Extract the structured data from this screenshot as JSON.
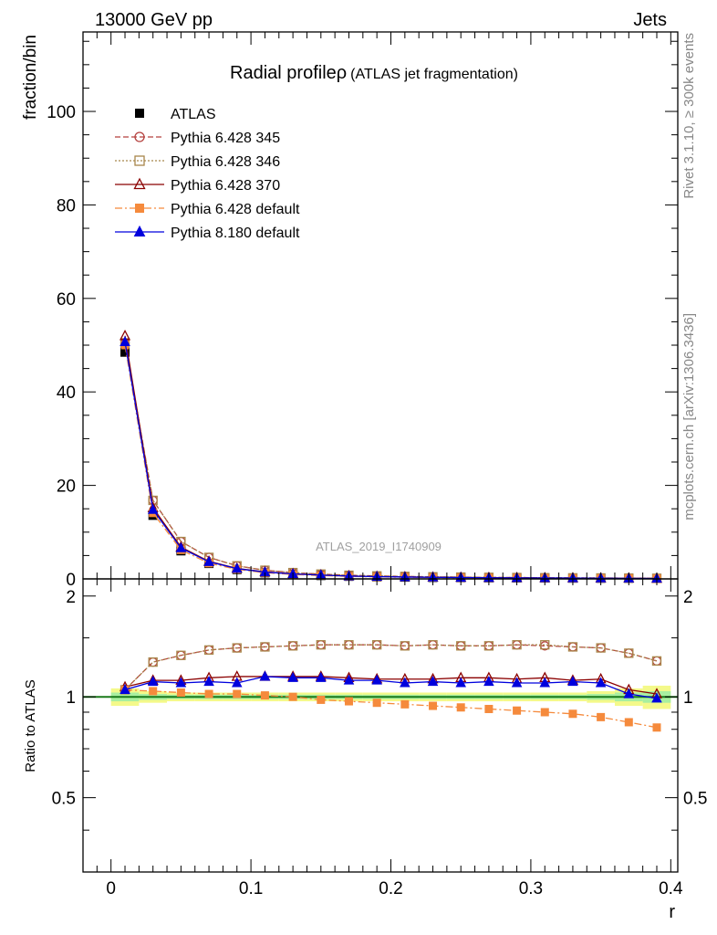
{
  "header": {
    "left": "13000 GeV pp",
    "right": "Jets"
  },
  "side_labels": {
    "top": "Rivet 3.1.10, ≥ 300k events",
    "bottom": "mcplots.cern.ch [arXiv:1306.3436]"
  },
  "colors": {
    "atlas": "#000000",
    "p345": "#b5413e",
    "p346": "#a8864a",
    "p370": "#8b0000",
    "p6def": "#f58a3c",
    "p8def": "#0000dd",
    "band_outer": "#f4f98a",
    "band_inner": "#a8efa0",
    "ratio_line": "#1a7a1a"
  },
  "chart_data": [
    {
      "type": "line",
      "title": "Radial profile",
      "title_symbol": "ρ",
      "subtitle": "(ATLAS jet fragmentation)",
      "ylabel": "fraction/bin",
      "watermark": "ATLAS_2019_I1740909",
      "xlim": [
        -0.02,
        0.405
      ],
      "ylim": [
        0,
        117
      ],
      "yticks": [
        0,
        20,
        40,
        60,
        80,
        100
      ],
      "x": [
        0.01,
        0.03,
        0.05,
        0.07,
        0.09,
        0.11,
        0.13,
        0.15,
        0.17,
        0.19,
        0.21,
        0.23,
        0.25,
        0.27,
        0.29,
        0.31,
        0.33,
        0.35,
        0.37,
        0.39
      ],
      "legend": {
        "placement": "top-left"
      },
      "series": [
        {
          "name": "ATLAS",
          "key": "atlas",
          "marker": "square",
          "line": "none",
          "values": [
            48.5,
            13.6,
            6.0,
            3.3,
            2.0,
            1.3,
            0.95,
            0.72,
            0.55,
            0.45,
            0.37,
            0.31,
            0.27,
            0.23,
            0.2,
            0.18,
            0.16,
            0.14,
            0.12,
            0.1
          ]
        },
        {
          "name": "Pythia 6.428 345",
          "key": "p345",
          "marker": "open-circle",
          "line": "dashed",
          "values": [
            50.5,
            16.8,
            8.0,
            4.6,
            2.8,
            1.85,
            1.35,
            1.02,
            0.78,
            0.64,
            0.53,
            0.44,
            0.38,
            0.33,
            0.29,
            0.25,
            0.22,
            0.2,
            0.16,
            0.13
          ]
        },
        {
          "name": "Pythia 6.428 346",
          "key": "p346",
          "marker": "open-square",
          "line": "dotted",
          "values": [
            50.5,
            16.8,
            8.0,
            4.6,
            2.8,
            1.85,
            1.35,
            1.03,
            0.78,
            0.64,
            0.53,
            0.44,
            0.38,
            0.33,
            0.29,
            0.25,
            0.22,
            0.2,
            0.16,
            0.13
          ]
        },
        {
          "name": "Pythia 6.428 370",
          "key": "p370",
          "marker": "open-triangle",
          "line": "solid",
          "values": [
            52.0,
            15.2,
            6.8,
            3.75,
            2.25,
            1.5,
            1.08,
            0.82,
            0.62,
            0.5,
            0.42,
            0.35,
            0.3,
            0.26,
            0.23,
            0.2,
            0.18,
            0.16,
            0.13,
            0.1
          ]
        },
        {
          "name": "Pythia 6.428 default",
          "key": "p6def",
          "marker": "filled-square",
          "line": "dashdot",
          "values": [
            50.0,
            14.1,
            6.2,
            3.35,
            2.05,
            1.32,
            0.95,
            0.71,
            0.53,
            0.43,
            0.35,
            0.29,
            0.25,
            0.21,
            0.18,
            0.16,
            0.14,
            0.12,
            0.1,
            0.08
          ]
        },
        {
          "name": "Pythia 8.180 default",
          "key": "p8def",
          "marker": "filled-triangle",
          "line": "solid",
          "values": [
            50.7,
            14.8,
            6.6,
            3.65,
            2.2,
            1.45,
            1.07,
            0.81,
            0.6,
            0.49,
            0.4,
            0.34,
            0.29,
            0.25,
            0.22,
            0.2,
            0.18,
            0.15,
            0.12,
            0.1
          ]
        }
      ]
    },
    {
      "type": "line",
      "title": "",
      "ylabel": "Ratio to ATLAS",
      "xlabel": "r",
      "xlim": [
        -0.02,
        0.405
      ],
      "ylim": [
        0.3,
        2.25
      ],
      "yticks": [
        0.5,
        1,
        2
      ],
      "xticks": [
        0,
        0.1,
        0.2,
        0.3,
        0.4
      ],
      "x": [
        0.01,
        0.03,
        0.05,
        0.07,
        0.09,
        0.11,
        0.13,
        0.15,
        0.17,
        0.19,
        0.21,
        0.23,
        0.25,
        0.27,
        0.29,
        0.31,
        0.33,
        0.35,
        0.37,
        0.39
      ],
      "band_outer": [
        0.06,
        0.04,
        0.03,
        0.03,
        0.03,
        0.03,
        0.03,
        0.03,
        0.03,
        0.03,
        0.03,
        0.03,
        0.03,
        0.03,
        0.03,
        0.03,
        0.03,
        0.04,
        0.06,
        0.08
      ],
      "band_inner": [
        0.03,
        0.02,
        0.015,
        0.015,
        0.015,
        0.015,
        0.015,
        0.015,
        0.015,
        0.015,
        0.015,
        0.015,
        0.015,
        0.015,
        0.015,
        0.015,
        0.015,
        0.02,
        0.03,
        0.04
      ],
      "series": [
        {
          "key": "p345",
          "values": [
            1.05,
            1.27,
            1.33,
            1.38,
            1.4,
            1.41,
            1.42,
            1.43,
            1.43,
            1.43,
            1.42,
            1.43,
            1.42,
            1.42,
            1.43,
            1.42,
            1.41,
            1.4,
            1.35,
            1.28
          ]
        },
        {
          "key": "p346",
          "values": [
            1.05,
            1.27,
            1.33,
            1.38,
            1.4,
            1.41,
            1.42,
            1.43,
            1.43,
            1.43,
            1.42,
            1.43,
            1.42,
            1.42,
            1.43,
            1.43,
            1.41,
            1.4,
            1.35,
            1.28
          ]
        },
        {
          "key": "p370",
          "values": [
            1.07,
            1.12,
            1.12,
            1.14,
            1.15,
            1.15,
            1.15,
            1.15,
            1.14,
            1.13,
            1.13,
            1.13,
            1.14,
            1.14,
            1.13,
            1.14,
            1.12,
            1.13,
            1.05,
            1.02
          ]
        },
        {
          "key": "p6def",
          "values": [
            1.05,
            1.04,
            1.03,
            1.02,
            1.02,
            1.01,
            1.0,
            0.98,
            0.97,
            0.96,
            0.95,
            0.94,
            0.93,
            0.92,
            0.91,
            0.9,
            0.89,
            0.87,
            0.84,
            0.81
          ]
        },
        {
          "key": "p8def",
          "values": [
            1.05,
            1.11,
            1.1,
            1.11,
            1.1,
            1.15,
            1.14,
            1.14,
            1.12,
            1.12,
            1.1,
            1.11,
            1.1,
            1.11,
            1.1,
            1.1,
            1.11,
            1.1,
            1.02,
            0.99
          ]
        }
      ]
    }
  ]
}
